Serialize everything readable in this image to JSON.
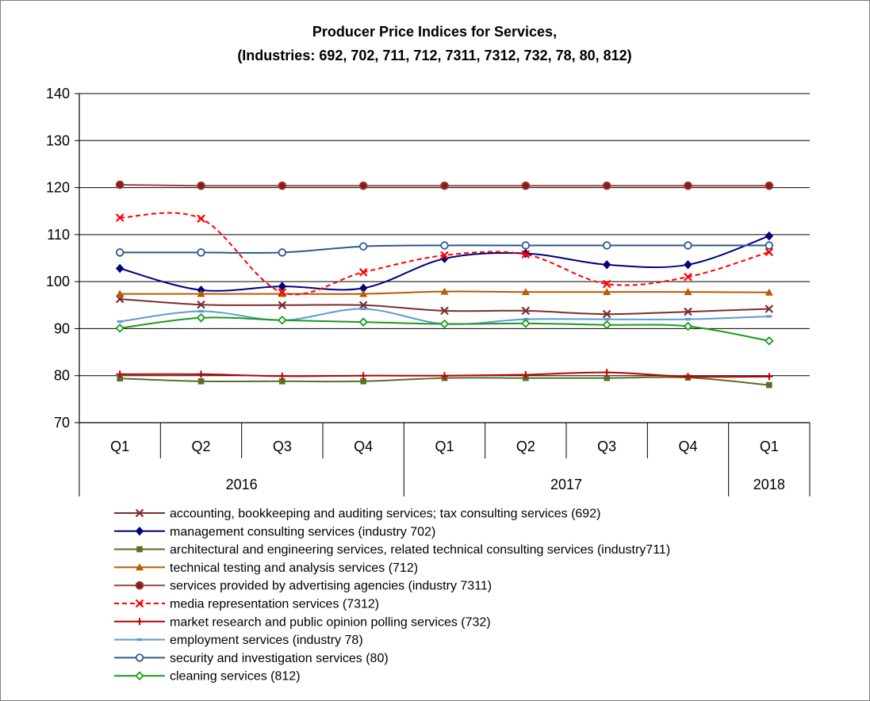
{
  "chart_data": {
    "type": "line",
    "title": "Producer Price Indices for Services,",
    "subtitle": "(Industries: 692, 702, 711, 712, 7311, 7312, 732, 78, 80, 812)",
    "xlabel": "",
    "ylabel": "",
    "ylim": [
      70,
      140
    ],
    "yticks": [
      70,
      80,
      90,
      100,
      110,
      120,
      130,
      140
    ],
    "grid": true,
    "legend_position": "bottom",
    "quarters": [
      "Q1",
      "Q2",
      "Q3",
      "Q4",
      "Q1",
      "Q2",
      "Q3",
      "Q4",
      "Q1"
    ],
    "years": [
      {
        "label": "2016",
        "span": 4
      },
      {
        "label": "2017",
        "span": 4
      },
      {
        "label": "2018",
        "span": 1
      }
    ],
    "series": [
      {
        "name": "accounting, bookkeeping and auditing services; tax consulting services (692)",
        "color": "#7b2e2e",
        "marker": "x",
        "dash": false,
        "values": [
          96.3,
          95.1,
          95.0,
          95.0,
          93.8,
          93.8,
          93.1,
          93.6,
          94.2
        ]
      },
      {
        "name": "management consulting services (industry 702)",
        "color": "#00007f",
        "marker": "diamond",
        "dash": false,
        "values": [
          102.8,
          98.2,
          99.0,
          98.6,
          104.9,
          106.0,
          103.6,
          103.6,
          109.7
        ]
      },
      {
        "name": "architectural and engineering services, related technical consulting services (industry711)",
        "color": "#5a6e2a",
        "marker": "square",
        "dash": false,
        "values": [
          79.4,
          78.8,
          78.8,
          78.8,
          79.5,
          79.5,
          79.5,
          79.6,
          78.0
        ]
      },
      {
        "name": "technical testing and analysis services (712)",
        "color": "#b85a00",
        "marker": "triangle",
        "dash": false,
        "values": [
          97.4,
          97.4,
          97.4,
          97.4,
          97.9,
          97.8,
          97.8,
          97.8,
          97.7
        ]
      },
      {
        "name": "services provided by advertising agencies (industry 7311)",
        "color": "#a04040",
        "marker": "circle-filled",
        "dash": false,
        "values": [
          120.6,
          120.4,
          120.4,
          120.4,
          120.4,
          120.4,
          120.4,
          120.4,
          120.4
        ]
      },
      {
        "name": "media representation services (7312)",
        "color": "#ff0000",
        "marker": "x",
        "dash": true,
        "values": [
          113.6,
          113.4,
          97.7,
          102.0,
          105.6,
          105.8,
          99.5,
          101.0,
          106.3
        ]
      },
      {
        "name": "market research and public opinion polling services (732)",
        "color": "#c00000",
        "marker": "plus",
        "dash": false,
        "values": [
          80.3,
          80.3,
          79.9,
          80.0,
          80.0,
          80.2,
          80.7,
          79.8,
          79.8
        ]
      },
      {
        "name": "employment services (industry 78)",
        "color": "#5b9bd5",
        "marker": "dash",
        "dash": false,
        "values": [
          91.5,
          93.7,
          91.8,
          94.2,
          91.0,
          92.0,
          92.0,
          92.0,
          92.6
        ]
      },
      {
        "name": "security and investigation services (80)",
        "color": "#2e5a8c",
        "marker": "circle-open",
        "dash": false,
        "values": [
          106.2,
          106.2,
          106.2,
          107.5,
          107.7,
          107.7,
          107.7,
          107.7,
          107.7
        ]
      },
      {
        "name": "cleaning services (812)",
        "color": "#1a9a1a",
        "marker": "diamond-open",
        "dash": false,
        "values": [
          90.1,
          92.3,
          91.8,
          91.4,
          91.0,
          91.1,
          90.8,
          90.5,
          87.4
        ]
      }
    ]
  }
}
